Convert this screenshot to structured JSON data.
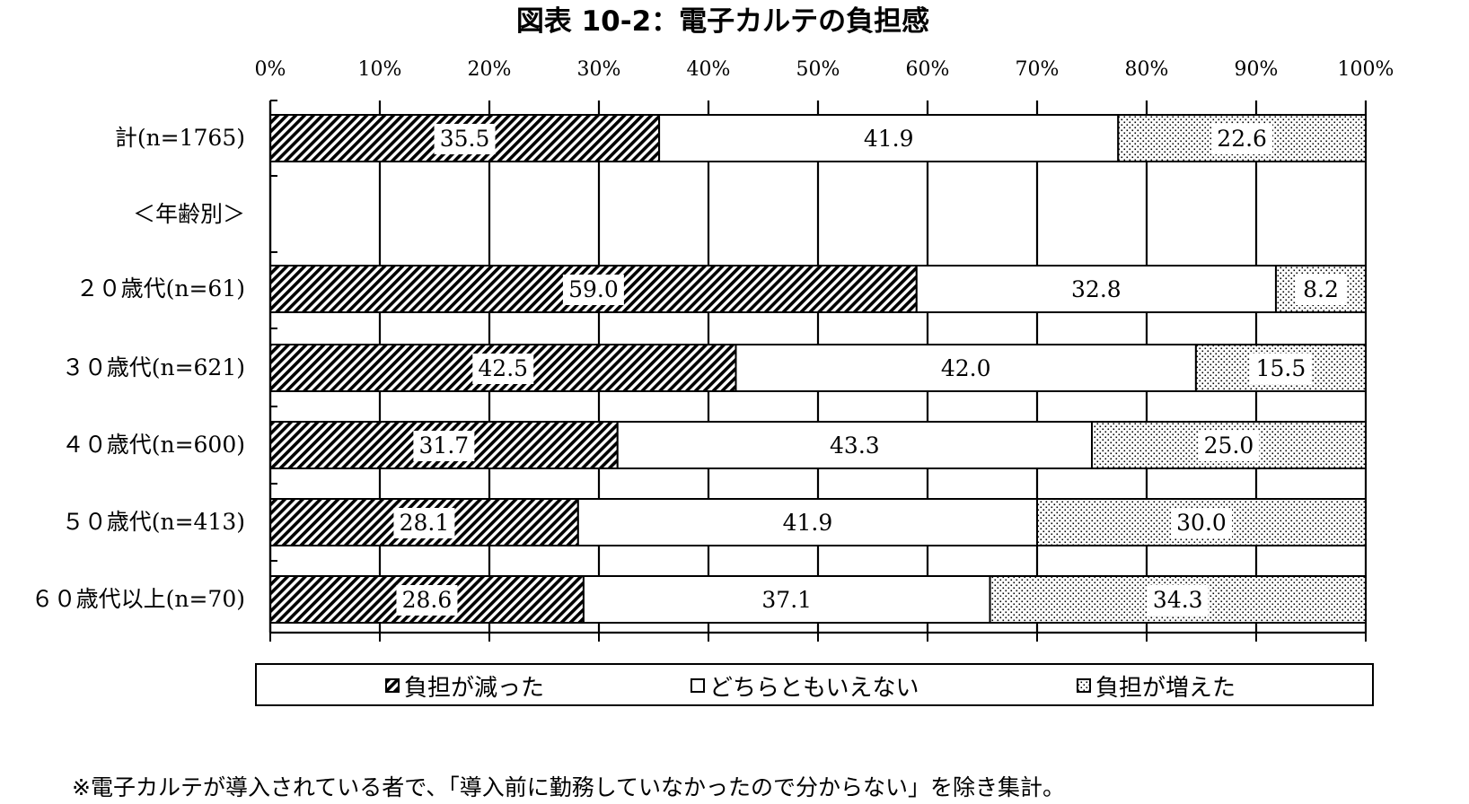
{
  "chart_data": {
    "type": "bar",
    "orientation": "horizontal-stacked-100",
    "title": "図表 10-2：電子カルテの負担感",
    "x_ticks": [
      "0%",
      "10%",
      "20%",
      "30%",
      "40%",
      "50%",
      "60%",
      "70%",
      "80%",
      "90%",
      "100%"
    ],
    "xlim": [
      0,
      100
    ],
    "grid": true,
    "legend_position": "bottom",
    "categories": [
      "計(n=1765)",
      "＜年齢別＞",
      "２０歳代(n=61)",
      "３０歳代(n=621)",
      "４０歳代(n=600)",
      "５０歳代(n=413)",
      "６０歳代以上(n=70)"
    ],
    "series": [
      {
        "name": "負担が減った",
        "values": [
          35.5,
          null,
          59.0,
          42.5,
          31.7,
          28.1,
          28.6
        ],
        "labels": [
          "35.5",
          "",
          "59.0",
          "42.5",
          "31.7",
          "28.1",
          "28.6"
        ]
      },
      {
        "name": "どちらともいえない",
        "values": [
          41.9,
          null,
          32.8,
          42.0,
          43.3,
          41.9,
          37.1
        ],
        "labels": [
          "41.9",
          "",
          "32.8",
          "42.0",
          "43.3",
          "41.9",
          "37.1"
        ]
      },
      {
        "name": "負担が増えた",
        "values": [
          22.6,
          null,
          8.2,
          15.5,
          25.0,
          30.0,
          34.3
        ],
        "labels": [
          "22.6",
          "",
          "8.2",
          "15.5",
          "25.0",
          "30.0",
          "34.3"
        ]
      }
    ]
  },
  "footnote": "※電子カルテが導入されている者で、「導入前に勤務していなかったので分からない」を除き集計。"
}
